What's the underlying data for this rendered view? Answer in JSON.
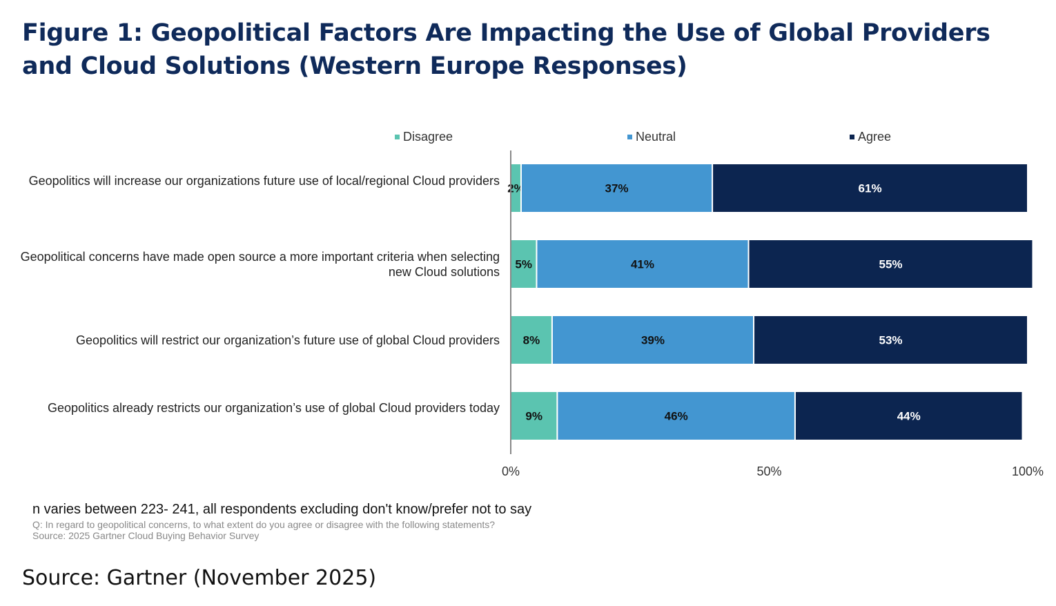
{
  "title": "Figure 1: Geopolitical Factors Are Impacting the Use of Global Providers and Cloud Solutions (Western Europe Responses)",
  "colors": {
    "title": "#0f2a5a",
    "Disagree": "#5bc4b0",
    "Neutral": "#4396d1",
    "Agree": "#0c2550"
  },
  "chart_data": {
    "type": "bar",
    "orientation": "horizontal",
    "stacked": true,
    "categories": [
      "Geopolitics will increase our organizations future use of local/regional Cloud providers",
      "Geopolitical concerns have made open source a more important criteria when selecting new Cloud solutions",
      "Geopolitics will restrict our organization’s future use of global Cloud providers",
      "Geopolitics already restricts our organization’s use of global Cloud providers today"
    ],
    "series": [
      {
        "name": "Disagree",
        "values": [
          2,
          5,
          8,
          9
        ]
      },
      {
        "name": "Neutral",
        "values": [
          37,
          41,
          39,
          46
        ]
      },
      {
        "name": "Agree",
        "values": [
          61,
          55,
          53,
          44
        ]
      }
    ],
    "data_labels": [
      [
        "2%",
        "37%",
        "61%"
      ],
      [
        "5%",
        "41%",
        "55%"
      ],
      [
        "8%",
        "39%",
        "53%"
      ],
      [
        "9%",
        "46%",
        "44%"
      ]
    ],
    "xlim": [
      0,
      100
    ],
    "x_ticks": [
      "0%",
      "50%",
      "100%"
    ],
    "legend": "top",
    "grid": false
  },
  "notes": {
    "n": "n varies between 223- 241, all respondents excluding don't know/prefer not to say",
    "question": "Q: In regard to geopolitical concerns, to what extent do you agree or disagree with the following statements?",
    "survey": "Source: 2025 Gartner Cloud Buying Behavior Survey"
  },
  "source": "Source: Gartner (November 2025)"
}
